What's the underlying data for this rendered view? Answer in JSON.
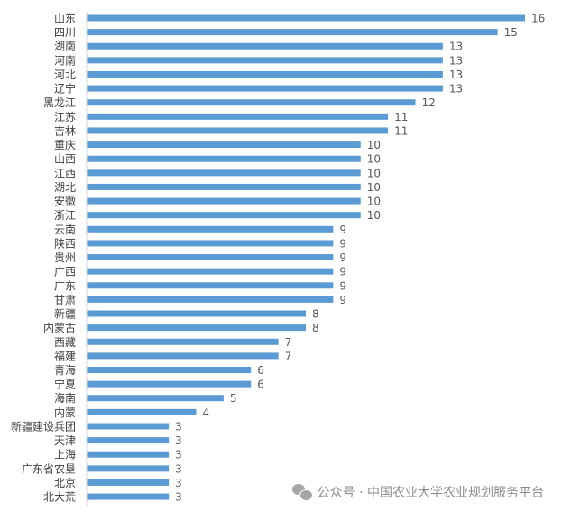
{
  "chart_data": {
    "type": "bar",
    "orientation": "horizontal",
    "categories": [
      "山东",
      "四川",
      "湖南",
      "河南",
      "河北",
      "辽宁",
      "黑龙江",
      "江苏",
      "吉林",
      "重庆",
      "山西",
      "江西",
      "湖北",
      "安徽",
      "浙江",
      "云南",
      "陕西",
      "贵州",
      "广西",
      "广东",
      "甘肃",
      "新疆",
      "内蒙古",
      "西藏",
      "福建",
      "青海",
      "宁夏",
      "海南",
      "内蒙",
      "新疆建设兵团",
      "天津",
      "上海",
      "广东省农垦",
      "北京",
      "北大荒"
    ],
    "values": [
      16,
      15,
      13,
      13,
      13,
      13,
      12,
      11,
      11,
      10,
      10,
      10,
      10,
      10,
      10,
      9,
      9,
      9,
      9,
      9,
      9,
      8,
      8,
      7,
      7,
      6,
      6,
      5,
      4,
      3,
      3,
      3,
      3,
      3,
      3
    ],
    "xlim": [
      0,
      16
    ],
    "bar_color": "#5b9bd5",
    "axis_color": "#d9d9d9",
    "grid": false,
    "data_labels": true
  },
  "watermark": {
    "icon": "wechat-icon",
    "text": "公众号 · 中国农业大学农业规划服务平台"
  }
}
